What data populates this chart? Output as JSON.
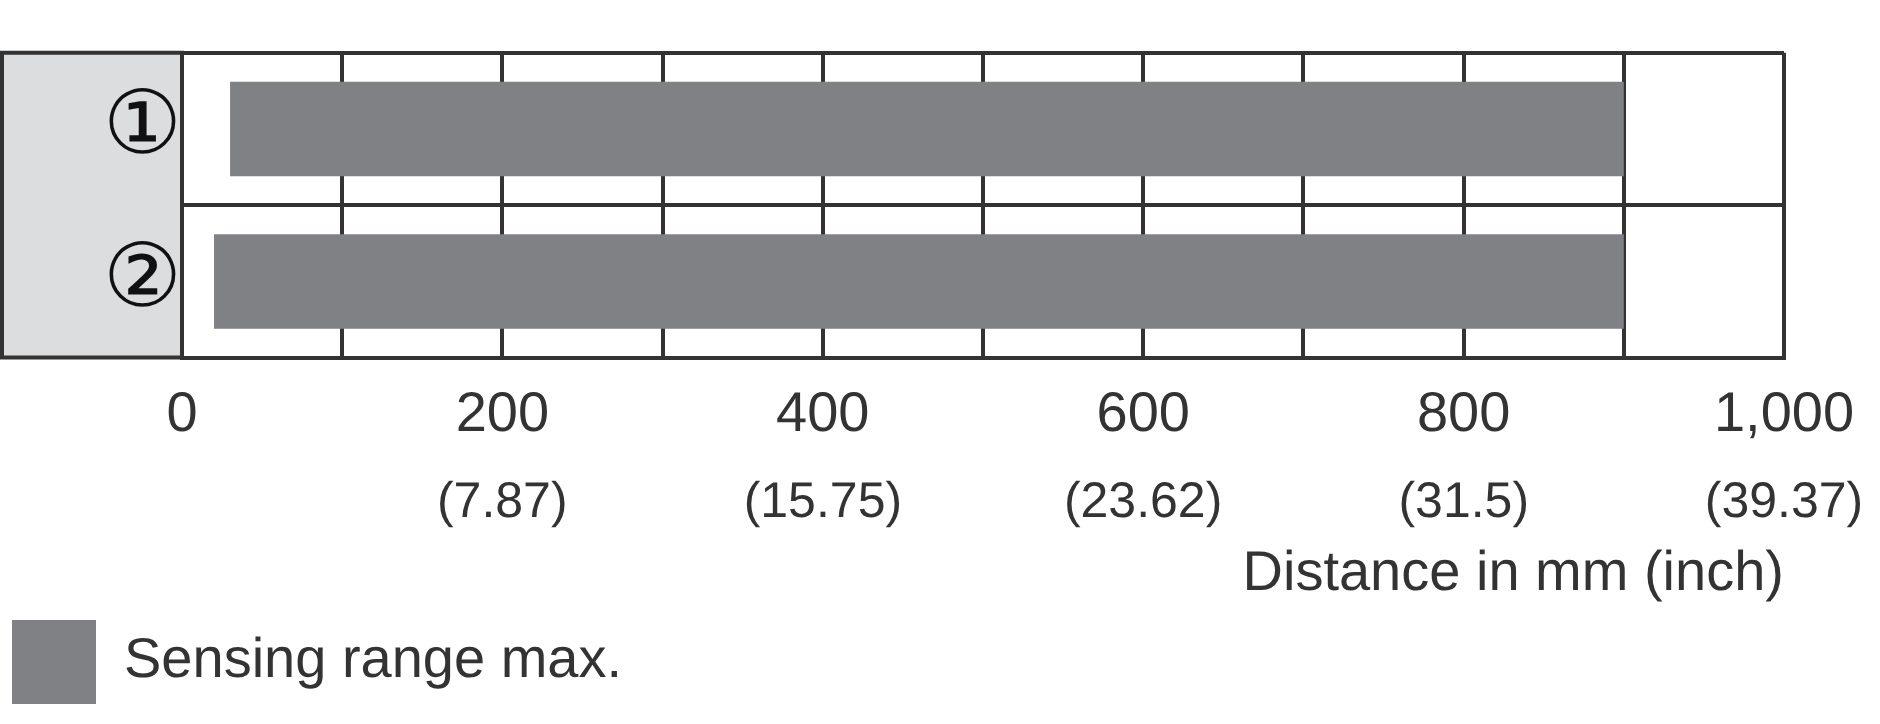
{
  "chart_data": {
    "type": "bar",
    "orientation": "horizontal",
    "categories": [
      "①",
      "②"
    ],
    "series": [
      {
        "name": "Sensing range max.",
        "color": "#808184",
        "values": [
          870,
          880
        ],
        "base": [
          30,
          20
        ]
      }
    ],
    "xlabel": "Distance in mm (inch)",
    "xlim": [
      0,
      1000
    ],
    "xticks": [
      0,
      {
        "value": 100,
        "label": null
      },
      200,
      {
        "value": 300,
        "label": null
      },
      400,
      {
        "value": 500,
        "label": null
      },
      600,
      {
        "value": 700,
        "label": null
      },
      800,
      {
        "value": 900,
        "label": null
      },
      {
        "value": 1000,
        "label": "1,000"
      }
    ],
    "x2lim": [
      0,
      39.37
    ],
    "x2ticks": [
      {
        "value": 7.87,
        "label": "(7.87)"
      },
      {
        "value": 15.75,
        "label": "(15.75)"
      },
      {
        "value": 23.62,
        "label": "(23.62)"
      },
      {
        "value": 31.5,
        "label": "(31.5)"
      },
      {
        "value": 39.37,
        "label": "(39.37)"
      }
    ],
    "grid": true,
    "legend": "bottom left"
  }
}
